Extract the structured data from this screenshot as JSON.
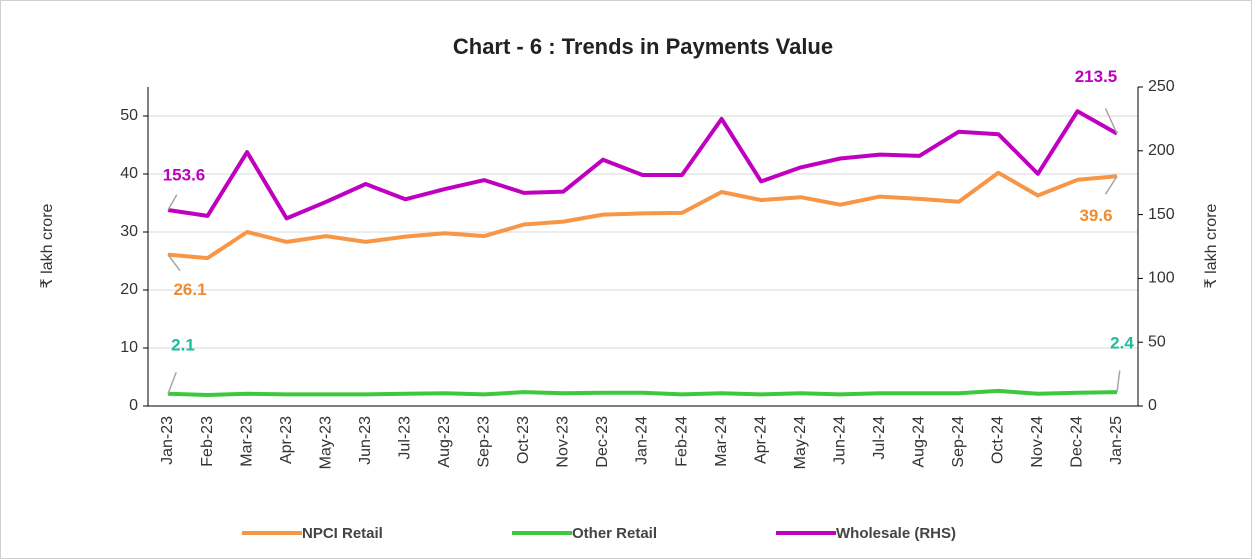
{
  "chart_data": {
    "type": "line",
    "title": "Chart - 6 : Trends in Payments Value",
    "y_label": "₹ lakh crore",
    "y2_label": "₹ lakh crore",
    "categories": [
      "Jan-23",
      "Feb-23",
      "Mar-23",
      "Apr-23",
      "May-23",
      "Jun-23",
      "Jul-23",
      "Aug-23",
      "Sep-23",
      "Oct-23",
      "Nov-23",
      "Dec-23",
      "Jan-24",
      "Feb-24",
      "Mar-24",
      "Apr-24",
      "May-24",
      "Jun-24",
      "Jul-24",
      "Aug-24",
      "Sep-24",
      "Oct-24",
      "Nov-24",
      "Dec-24",
      "Jan-25"
    ],
    "series": [
      {
        "name": "NPCI Retail",
        "color": "#f79646",
        "label_color": "#f08c2e",
        "values": [
          26.1,
          25.5,
          30.0,
          28.3,
          29.3,
          28.3,
          29.2,
          29.8,
          29.3,
          31.3,
          31.8,
          33.0,
          33.2,
          33.3,
          36.9,
          35.5,
          36.0,
          34.7,
          36.1,
          35.7,
          35.2,
          40.2,
          36.3,
          39.0,
          39.6
        ]
      },
      {
        "name": "Other Retail",
        "color": "#3ec83e",
        "label_color": "#1abc9c",
        "values": [
          2.1,
          1.9,
          2.1,
          2.0,
          2.0,
          2.0,
          2.1,
          2.2,
          2.0,
          2.4,
          2.2,
          2.3,
          2.3,
          2.0,
          2.2,
          2.0,
          2.2,
          2.0,
          2.2,
          2.2,
          2.2,
          2.6,
          2.1,
          2.3,
          2.4
        ]
      },
      {
        "name": "Wholesale (RHS)",
        "color": "#c000c0",
        "label_color": "#c000c0",
        "axis": "y2",
        "values": [
          153.6,
          149,
          199,
          147,
          160,
          174,
          162,
          170,
          177,
          167,
          168,
          193,
          181,
          181,
          225,
          176,
          187,
          194,
          197,
          196,
          215,
          213,
          182,
          231,
          213.5
        ]
      }
    ],
    "data_labels": [
      0,
      24
    ],
    "ylim": [
      0,
      55
    ],
    "yticks": [
      0,
      10,
      20,
      30,
      40,
      50
    ],
    "y2lim": [
      0,
      250
    ],
    "y2ticks": [
      0,
      50,
      100,
      150,
      200,
      250
    ],
    "grid": true,
    "legend": "bottom"
  }
}
